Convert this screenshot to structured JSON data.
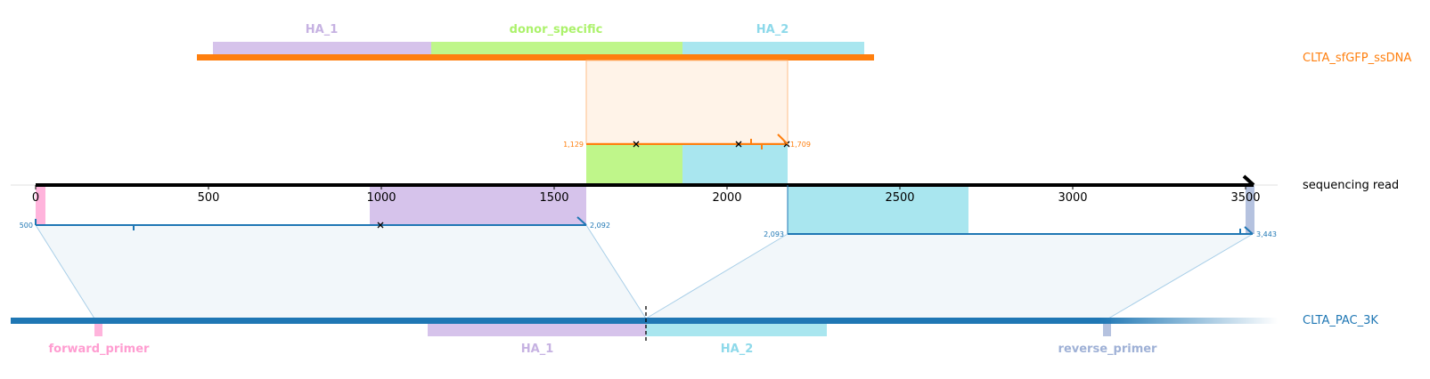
{
  "side_labels": {
    "donor": "CLTA_sfGFP_ssDNA",
    "read": "sequencing read",
    "reference": "CLTA_PAC_3K"
  },
  "colors": {
    "orange": "#ff7f0e",
    "blue": "#1f77b4",
    "ha1": "#d6c3eb",
    "donor_specific": "#bff68a",
    "ha2": "#a9e6ef",
    "forward_primer": "#ffb4dc",
    "reverse_primer": "#b5c2df",
    "ha1_text": "#c6b2e2",
    "donor_text": "#acf26c",
    "ha2_text": "#8dd9ea",
    "fwd_text": "#ff9dd1",
    "rev_text": "#9fb1d6"
  },
  "donor_features": [
    {
      "name": "HA_1"
    },
    {
      "name": "donor_specific"
    },
    {
      "name": "HA_2"
    }
  ],
  "reference_features": [
    {
      "name": "forward_primer"
    },
    {
      "name": "HA_1"
    },
    {
      "name": "HA_2"
    },
    {
      "name": "reverse_primer"
    }
  ],
  "read_axis": {
    "ticks": [
      "0",
      "500",
      "1000",
      "1500",
      "2000",
      "2500",
      "3000",
      "3500"
    ]
  },
  "alignments": [
    {
      "target": "donor",
      "start_label": "1,129",
      "end_label": "1,709"
    },
    {
      "target": "reference",
      "start_label": "500",
      "end_label": "2,092"
    },
    {
      "target": "reference",
      "start_label": "2,093",
      "end_label": "3,443"
    }
  ]
}
